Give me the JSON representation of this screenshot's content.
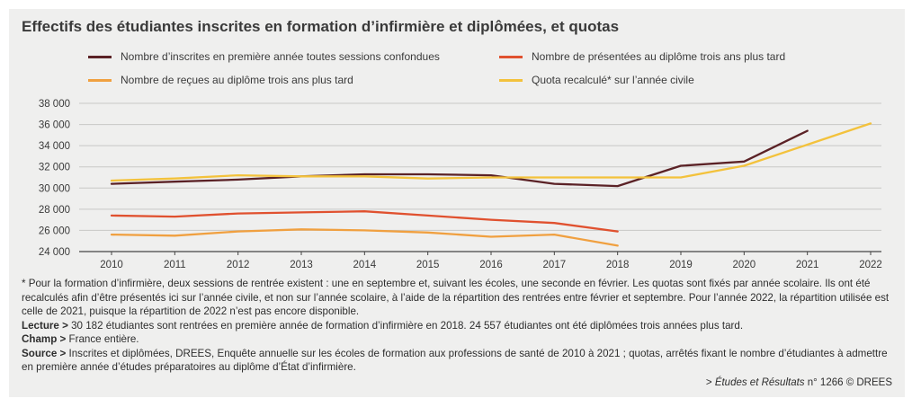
{
  "title": "Effectifs des étudiantes inscrites en formation d’infirmière et diplômées, et quotas",
  "colors": {
    "inscrites": "#5b2226",
    "presentees": "#e0512f",
    "recues": "#f0a040",
    "quota": "#f3c23c"
  },
  "chart_data": {
    "type": "line",
    "x": [
      2010,
      2011,
      2012,
      2013,
      2014,
      2015,
      2016,
      2017,
      2018,
      2019,
      2020,
      2021,
      2022
    ],
    "ylim": [
      24000,
      38000
    ],
    "yticks": [
      24000,
      26000,
      28000,
      30000,
      32000,
      34000,
      36000,
      38000
    ],
    "ytick_labels": [
      "24 000",
      "26 000",
      "28 000",
      "30 000",
      "32 000",
      "34 000",
      "36 000",
      "38 000"
    ],
    "xtick_labels": [
      "2010",
      "2011",
      "2012",
      "2013",
      "2014",
      "2015",
      "2016",
      "2017",
      "2018",
      "2019",
      "2020",
      "2021",
      "2022"
    ],
    "grid": true,
    "legend_position": "top",
    "series": [
      {
        "name": "Nombre d’inscrites en première année toutes sessions confondues",
        "color": "#5b2226",
        "values": [
          30400,
          30600,
          30800,
          31100,
          31300,
          31300,
          31200,
          30400,
          30182,
          32100,
          32500,
          35400,
          null
        ]
      },
      {
        "name": "Nombre de présentées au diplôme trois ans plus tard",
        "color": "#e0512f",
        "values": [
          27400,
          27300,
          27600,
          27700,
          27800,
          27400,
          27000,
          26700,
          25900,
          null,
          null,
          null,
          null
        ]
      },
      {
        "name": "Nombre de reçues au diplôme trois ans plus tard",
        "color": "#f0a040",
        "values": [
          25600,
          25500,
          25900,
          26100,
          26000,
          25800,
          25400,
          25600,
          24557,
          null,
          null,
          null,
          null
        ]
      },
      {
        "name": "Quota recalculé* sur l’année civile",
        "color": "#f3c23c",
        "values": [
          30700,
          30900,
          31200,
          31100,
          31100,
          30900,
          31000,
          31000,
          31000,
          31000,
          32100,
          34100,
          36100
        ]
      }
    ]
  },
  "notes": {
    "footnote": "* Pour la formation d’infirmière, deux sessions de rentrée existent : une en septembre et, suivant les écoles, une seconde en février. Les quotas sont fixés par année scolaire. Ils ont été recalculés afin d’être présentés ici sur l’année civile, et non sur l’année scolaire, à l’aide de la répartition des rentrées entre février et septembre. Pour l’année 2022, la répartition utilisée est celle de 2021, puisque la répartition de 2022 n’est pas encore disponible.",
    "lecture_label": "Lecture >",
    "lecture_text": " 30 182 étudiantes sont rentrées en première année de formation d’infirmière en 2018. 24 557 étudiantes ont été diplômées trois années plus tard.",
    "champ_label": "Champ >",
    "champ_text": " France entière.",
    "source_label": "Source >",
    "source_text": " Inscrites et diplômées, DREES, Enquête annuelle sur les écoles de formation aux professions de santé de 2010 à 2021 ; quotas, arrêtés fixant le nombre d’étudiantes à admettre en première année d’études préparatoires au diplôme d’État d’infirmière."
  },
  "attribution": {
    "prefix": "> ",
    "publication": "Études et Résultats",
    "suffix": " n° 1266 © DREES"
  }
}
